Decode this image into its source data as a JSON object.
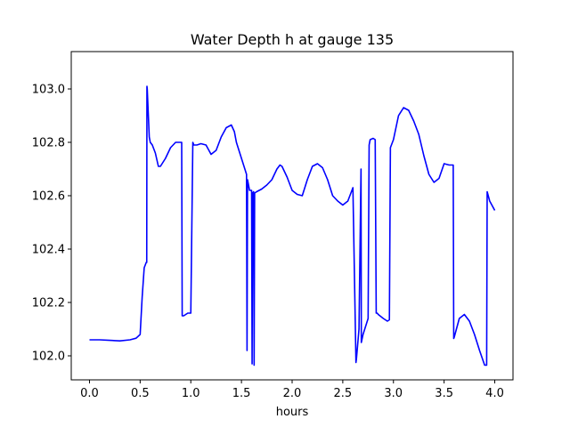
{
  "chart_data": {
    "type": "line",
    "title": "Water Depth h at gauge 135",
    "xlabel": "hours",
    "ylabel": "",
    "xlim": [
      -0.18,
      4.18
    ],
    "ylim": [
      101.91,
      103.14
    ],
    "xticks": [
      0.0,
      0.5,
      1.0,
      1.5,
      2.0,
      2.5,
      3.0,
      3.5,
      4.0
    ],
    "xtick_labels": [
      "0.0",
      "0.5",
      "1.0",
      "1.5",
      "2.0",
      "2.5",
      "3.0",
      "3.5",
      "4.0"
    ],
    "yticks": [
      102.0,
      102.2,
      102.4,
      102.6,
      102.8,
      103.0
    ],
    "ytick_labels": [
      "102.0",
      "102.2",
      "102.4",
      "102.6",
      "102.8",
      "103.0"
    ],
    "grid": false,
    "series": [
      {
        "color": "#0000ff",
        "x": [
          0.0,
          0.1,
          0.2,
          0.3,
          0.4,
          0.46,
          0.5,
          0.52,
          0.54,
          0.56,
          0.565,
          0.567,
          0.57,
          0.58,
          0.59,
          0.6,
          0.62,
          0.65,
          0.68,
          0.7,
          0.75,
          0.8,
          0.85,
          0.9,
          0.91,
          0.915,
          0.93,
          0.97,
          0.99,
          1.0,
          1.02,
          1.03,
          1.06,
          1.1,
          1.15,
          1.2,
          1.25,
          1.3,
          1.35,
          1.4,
          1.43,
          1.45,
          1.5,
          1.55,
          1.555,
          1.56,
          1.58,
          1.6,
          1.605,
          1.61,
          1.62,
          1.625,
          1.63,
          1.65,
          1.7,
          1.75,
          1.8,
          1.85,
          1.88,
          1.9,
          1.95,
          2.0,
          2.05,
          2.1,
          2.15,
          2.2,
          2.25,
          2.3,
          2.35,
          2.4,
          2.45,
          2.5,
          2.55,
          2.6,
          2.63,
          2.635,
          2.66,
          2.68,
          2.683,
          2.7,
          2.75,
          2.76,
          2.77,
          2.8,
          2.82,
          2.83,
          2.84,
          2.85,
          2.9,
          2.94,
          2.96,
          2.97,
          3.0,
          3.05,
          3.1,
          3.15,
          3.2,
          3.25,
          3.3,
          3.35,
          3.4,
          3.45,
          3.5,
          3.55,
          3.59,
          3.595,
          3.6,
          3.65,
          3.7,
          3.75,
          3.8,
          3.85,
          3.9,
          3.92,
          3.925,
          3.95,
          4.0
        ],
        "values": [
          102.06,
          102.06,
          102.058,
          102.056,
          102.06,
          102.066,
          102.08,
          102.22,
          102.33,
          102.35,
          102.35,
          103.01,
          103.0,
          102.91,
          102.82,
          102.8,
          102.79,
          102.76,
          102.71,
          102.71,
          102.74,
          102.78,
          102.8,
          102.8,
          102.8,
          102.15,
          102.15,
          102.16,
          102.16,
          102.16,
          102.8,
          102.79,
          102.79,
          102.795,
          102.79,
          102.755,
          102.77,
          102.82,
          102.855,
          102.865,
          102.84,
          102.8,
          102.74,
          102.68,
          102.02,
          102.66,
          102.62,
          102.62,
          101.97,
          102.61,
          102.615,
          101.965,
          102.61,
          102.615,
          102.625,
          102.64,
          102.66,
          102.7,
          102.715,
          102.71,
          102.67,
          102.62,
          102.605,
          102.6,
          102.66,
          102.71,
          102.72,
          102.705,
          102.66,
          102.6,
          102.58,
          102.565,
          102.58,
          102.63,
          101.975,
          101.99,
          102.1,
          102.7,
          102.05,
          102.08,
          102.14,
          102.79,
          102.81,
          102.815,
          102.81,
          102.16,
          102.16,
          102.155,
          102.14,
          102.13,
          102.135,
          102.78,
          102.81,
          102.9,
          102.93,
          102.92,
          102.88,
          102.83,
          102.75,
          102.68,
          102.65,
          102.665,
          102.72,
          102.715,
          102.715,
          102.065,
          102.07,
          102.14,
          102.155,
          102.13,
          102.08,
          102.02,
          101.965,
          101.965,
          102.615,
          102.58,
          102.545
        ]
      }
    ]
  }
}
